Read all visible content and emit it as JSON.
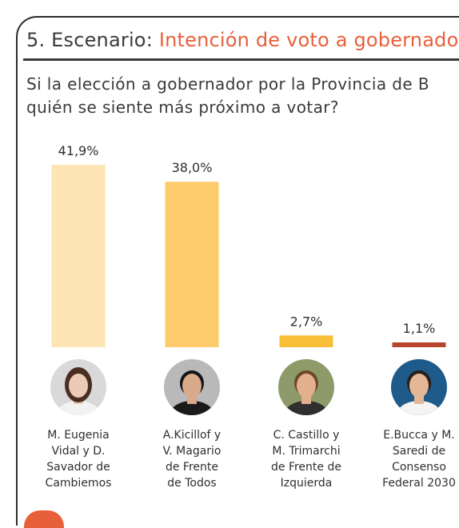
{
  "header": {
    "prefix": "5. Escenario: ",
    "title": "Intención de voto a gobernador"
  },
  "question": {
    "line1": "Si la elección a gobernador por la Provincia de B",
    "line2": "quién se siente más próximo a votar?"
  },
  "colors": {
    "accent": "#e8603a",
    "bar_vidal": "#fde5b5",
    "bar_kicillof": "#fdcb6b",
    "bar_castillo": "#f8bf36",
    "bar_bucca": "#b8442b"
  },
  "candidates": [
    {
      "name_lines": [
        "M. Eugenia",
        "Vidal y  D.",
        "Savador de",
        "Cambiemos"
      ],
      "photo_icon": "candidate-photo-woman"
    },
    {
      "name_lines": [
        "A.Kicillof y",
        "V. Magario",
        "de Frente",
        "de Todos"
      ],
      "photo_icon": "candidate-photo-man-dark"
    },
    {
      "name_lines": [
        "C. Castillo y",
        "M. Trimarchi",
        "de Frente de",
        "Izquierda"
      ],
      "photo_icon": "candidate-photo-man-curly"
    },
    {
      "name_lines": [
        "E.Bucca y M.",
        "Saredi de",
        "Consenso",
        "Federal 2030"
      ],
      "photo_icon": "candidate-photo-man-smiling"
    }
  ],
  "chart_data": {
    "type": "bar",
    "categories": [
      "M. Eugenia Vidal y  D. Savador de Cambiemos",
      "A.Kicillof y V. Magario de Frente de Todos",
      "C. Castillo y M. Trimarchi de Frente de Izquierda",
      "E.Bucca y M. Saredi de Consenso Federal 2030"
    ],
    "values": [
      41.9,
      38.0,
      2.7,
      1.1
    ],
    "value_labels": [
      "41,9%",
      "38,0%",
      "2,7%",
      "1,1%"
    ],
    "bar_colors": [
      "#fde5b5",
      "#fdcb6b",
      "#f8bf36",
      "#b8442b"
    ],
    "ylim": [
      0,
      41.9
    ],
    "grid": false,
    "legend": "none"
  }
}
